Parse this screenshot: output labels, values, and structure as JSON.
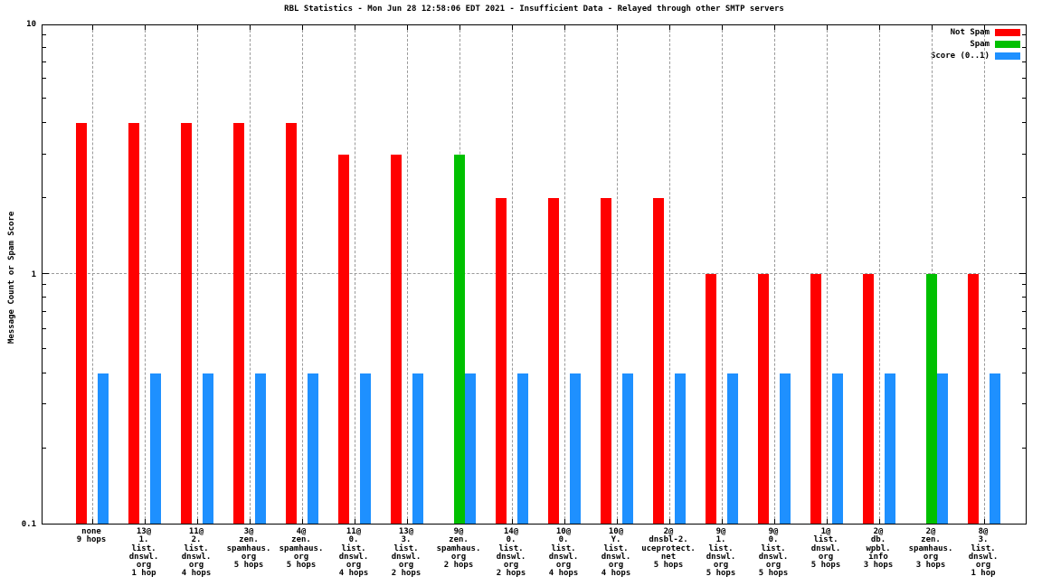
{
  "chart_data": {
    "type": "bar",
    "title": "RBL Statistics - Mon Jun 28 12:58:06 EDT 2021 - Insufficient Data - Relayed through other SMTP servers",
    "ylabel": "Message Count or Spam Score",
    "yscale": "log",
    "ylim": [
      0.1,
      10
    ],
    "grid": "vertical dashed per category, horizontal dashed at y=1",
    "ytick_labels": [
      {
        "value": 10,
        "label": "10"
      },
      {
        "value": 1,
        "label": "1"
      },
      {
        "value": 0.1,
        "label": "0.1"
      }
    ],
    "legend": {
      "position": "top-right",
      "entries": [
        {
          "key": "not_spam",
          "name": "Not Spam",
          "color": "#ff0000"
        },
        {
          "key": "spam",
          "name": "Spam",
          "color": "#00c000"
        },
        {
          "key": "score",
          "name": "Score (0..1)",
          "color": "#1e90ff"
        }
      ]
    },
    "categories": [
      {
        "label_lines": [
          "none",
          "9 hops"
        ],
        "not_spam": 4,
        "spam": 0,
        "score": 0.4
      },
      {
        "label_lines": [
          "13@",
          "1.",
          "list.",
          "dnswl.",
          "org",
          "1 hop"
        ],
        "not_spam": 4,
        "spam": 0,
        "score": 0.4
      },
      {
        "label_lines": [
          "11@",
          "2.",
          "list.",
          "dnswl.",
          "org",
          "4 hops"
        ],
        "not_spam": 4,
        "spam": 0,
        "score": 0.4
      },
      {
        "label_lines": [
          "3@",
          "zen.",
          "spamhaus.",
          "org",
          "5 hops"
        ],
        "not_spam": 4,
        "spam": 0,
        "score": 0.4
      },
      {
        "label_lines": [
          "4@",
          "zen.",
          "spamhaus.",
          "org",
          "5 hops"
        ],
        "not_spam": 4,
        "spam": 0,
        "score": 0.4
      },
      {
        "label_lines": [
          "11@",
          "0.",
          "list.",
          "dnswl.",
          "org",
          "4 hops"
        ],
        "not_spam": 3,
        "spam": 0,
        "score": 0.4
      },
      {
        "label_lines": [
          "13@",
          "3.",
          "list.",
          "dnswl.",
          "org",
          "2 hops"
        ],
        "not_spam": 3,
        "spam": 0,
        "score": 0.4
      },
      {
        "label_lines": [
          "9@",
          "zen.",
          "spamhaus.",
          "org",
          "2 hops"
        ],
        "not_spam": 0,
        "spam": 3,
        "score": 0.4
      },
      {
        "label_lines": [
          "14@",
          "0.",
          "list.",
          "dnswl.",
          "org",
          "2 hops"
        ],
        "not_spam": 2,
        "spam": 0,
        "score": 0.4
      },
      {
        "label_lines": [
          "10@",
          "0.",
          "list.",
          "dnswl.",
          "org",
          "4 hops"
        ],
        "not_spam": 2,
        "spam": 0,
        "score": 0.4
      },
      {
        "label_lines": [
          "10@",
          "Y.",
          "list.",
          "dnswl.",
          "org",
          "4 hops"
        ],
        "not_spam": 2,
        "spam": 0,
        "score": 0.4
      },
      {
        "label_lines": [
          "2@",
          "dnsbl-2.",
          "uceprotect.",
          "net",
          "5 hops"
        ],
        "not_spam": 2,
        "spam": 0,
        "score": 0.4
      },
      {
        "label_lines": [
          "9@",
          "1.",
          "list.",
          "dnswl.",
          "org",
          "5 hops"
        ],
        "not_spam": 1,
        "spam": 0,
        "score": 0.4
      },
      {
        "label_lines": [
          "9@",
          "0.",
          "list.",
          "dnswl.",
          "org",
          "5 hops"
        ],
        "not_spam": 1,
        "spam": 0,
        "score": 0.4
      },
      {
        "label_lines": [
          "1@",
          "list.",
          "dnswl.",
          "org",
          "5 hops"
        ],
        "not_spam": 1,
        "spam": 0,
        "score": 0.4
      },
      {
        "label_lines": [
          "2@",
          "db.",
          "wpbl.",
          "info",
          "3 hops"
        ],
        "not_spam": 1,
        "spam": 0,
        "score": 0.4
      },
      {
        "label_lines": [
          "2@",
          "zen.",
          "spamhaus.",
          "org",
          "3 hops"
        ],
        "not_spam": 0,
        "spam": 1,
        "score": 0.4
      },
      {
        "label_lines": [
          "8@",
          "3.",
          "list.",
          "dnswl.",
          "org",
          "1 hop"
        ],
        "not_spam": 1,
        "spam": 0,
        "score": 0.4
      }
    ]
  }
}
